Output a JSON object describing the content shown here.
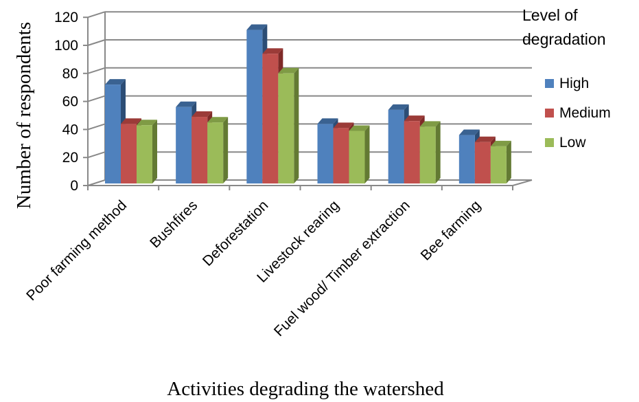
{
  "chart_data": {
    "type": "bar",
    "ylabel": "Number of respondents",
    "xlabel": "Activities degrading the watershed",
    "ylim": [
      0,
      120
    ],
    "yticks": [
      "0",
      "20",
      "40",
      "60",
      "80",
      "100",
      "120"
    ],
    "grid": true,
    "legend_title_lines": [
      "Level of",
      "degradation"
    ],
    "legend_position": "right",
    "categories": [
      "Poor farming method",
      "Bushfires",
      "Deforestation",
      "Livestock rearing",
      "Fuel wood/ Timber extraction",
      "Bee farming"
    ],
    "series": [
      {
        "name": "High",
        "values": [
          72,
          56,
          111,
          44,
          54,
          36
        ]
      },
      {
        "name": "Medium",
        "values": [
          44,
          49,
          94,
          41,
          46,
          31
        ]
      },
      {
        "name": "Low",
        "values": [
          43,
          45,
          80,
          39,
          42,
          28
        ]
      }
    ],
    "colors": {
      "High": {
        "front": "#4f81bd",
        "side": "#2c4d75",
        "top": "#3a6291"
      },
      "Medium": {
        "front": "#c0504d",
        "side": "#7f2a28",
        "top": "#9b3b38"
      },
      "Low": {
        "front": "#9bbb59",
        "side": "#637a33",
        "top": "#7f9b45"
      }
    },
    "gridline_color": "#888888"
  }
}
